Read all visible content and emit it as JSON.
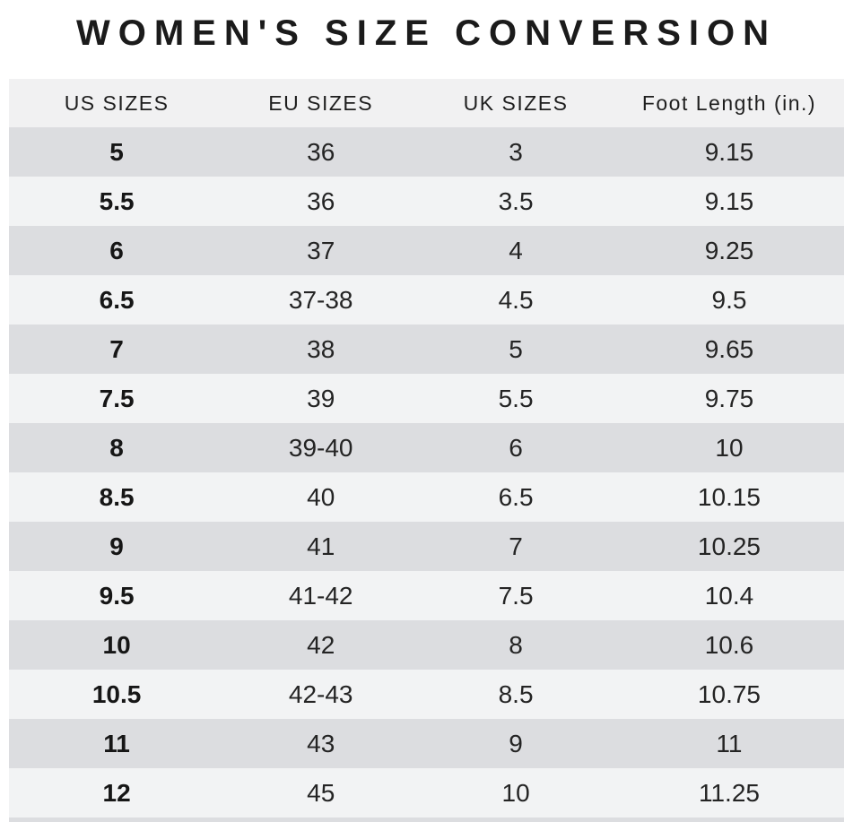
{
  "page_title": "WOMEN'S SIZE CONVERSION",
  "colors": {
    "background": "#ffffff",
    "header_bg": "#f1f1f2",
    "row_dark": "#dcdde0",
    "row_light": "#f2f3f4",
    "title_text": "#1b1b1b",
    "cell_text": "#242424"
  },
  "chart_data": {
    "type": "table",
    "title": "WOMEN'S SIZE CONVERSION",
    "columns": [
      "US SIZES",
      "EU SIZES",
      "UK SIZES",
      "Foot Length (in.)"
    ],
    "rows": [
      [
        "5",
        "36",
        "3",
        "9.15"
      ],
      [
        "5.5",
        "36",
        "3.5",
        "9.15"
      ],
      [
        "6",
        "37",
        "4",
        "9.25"
      ],
      [
        "6.5",
        "37-38",
        "4.5",
        "9.5"
      ],
      [
        "7",
        "38",
        "5",
        "9.65"
      ],
      [
        "7.5",
        "39",
        "5.5",
        "9.75"
      ],
      [
        "8",
        "39-40",
        "6",
        "10"
      ],
      [
        "8.5",
        "40",
        "6.5",
        "10.15"
      ],
      [
        "9",
        "41",
        "7",
        "10.25"
      ],
      [
        "9.5",
        "41-42",
        "7.5",
        "10.4"
      ],
      [
        "10",
        "42",
        "8",
        "10.6"
      ],
      [
        "10.5",
        "42-43",
        "8.5",
        "10.75"
      ],
      [
        "11",
        "43",
        "9",
        "11"
      ],
      [
        "12",
        "45",
        "10",
        "11.25"
      ]
    ],
    "layout": {
      "striped": true,
      "first_row_style": "dark",
      "header_position": "top",
      "bold_column": "US SIZES"
    }
  }
}
